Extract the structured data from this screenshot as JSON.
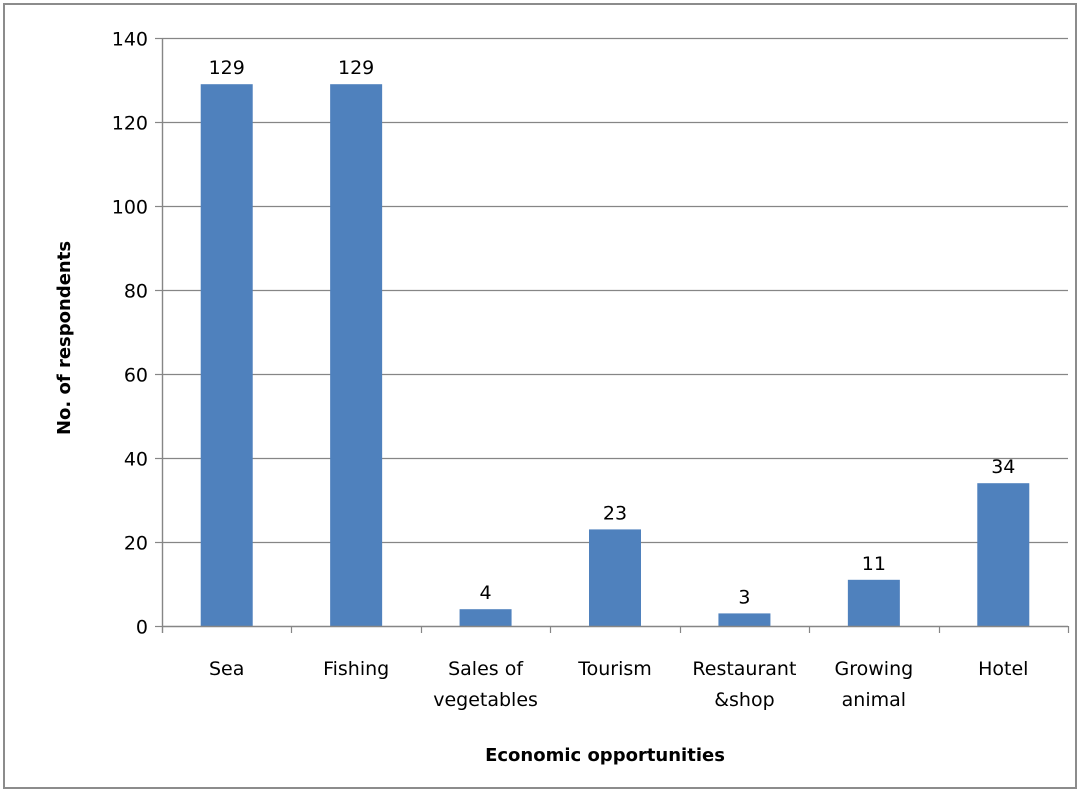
{
  "chart_data": {
    "type": "bar",
    "title": "",
    "xlabel": "Economic opportunities",
    "ylabel": "No. of respondents",
    "categories": [
      [
        "Sea"
      ],
      [
        "Fishing"
      ],
      [
        "Sales of",
        "vegetables"
      ],
      [
        "Tourism"
      ],
      [
        "Restaurant",
        "&shop"
      ],
      [
        "Growing",
        "animal"
      ],
      [
        "Hotel"
      ]
    ],
    "values": [
      129,
      129,
      4,
      23,
      3,
      11,
      34
    ],
    "data_labels": [
      "129",
      "129",
      "4",
      "23",
      "3",
      "11",
      "34"
    ],
    "ylim": [
      0,
      140
    ],
    "yticks": [
      0,
      20,
      40,
      60,
      80,
      100,
      120,
      140
    ],
    "grid": true,
    "legend": "none",
    "colors": {
      "bar": "#4f81bd",
      "grid": "#868686",
      "axis": "#868686"
    }
  }
}
